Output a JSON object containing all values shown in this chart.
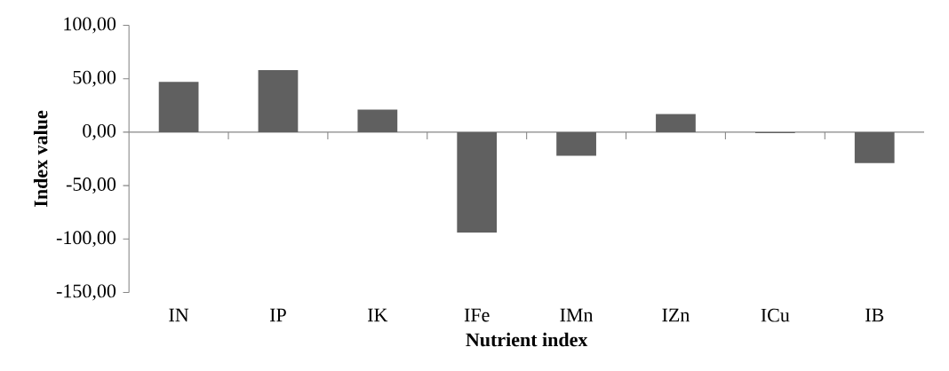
{
  "chart_data": {
    "type": "bar",
    "xlabel": "Nutrient index",
    "ylabel": "Index value",
    "categories": [
      "IN",
      "IP",
      "IK",
      "IFe",
      "IMn",
      "IZn",
      "ICu",
      "IB"
    ],
    "values": [
      47,
      58,
      21,
      -94,
      -22,
      17,
      -1,
      -29
    ],
    "color": "#606060",
    "ylim": [
      -150,
      100
    ],
    "yticks": [
      {
        "value": -150,
        "label": "-150,00"
      },
      {
        "value": -100,
        "label": "-100,00"
      },
      {
        "value": -50,
        "label": "-50,00"
      },
      {
        "value": 0,
        "label": "0,00"
      },
      {
        "value": 50,
        "label": "50,00"
      },
      {
        "value": 100,
        "label": "100,00"
      }
    ]
  }
}
